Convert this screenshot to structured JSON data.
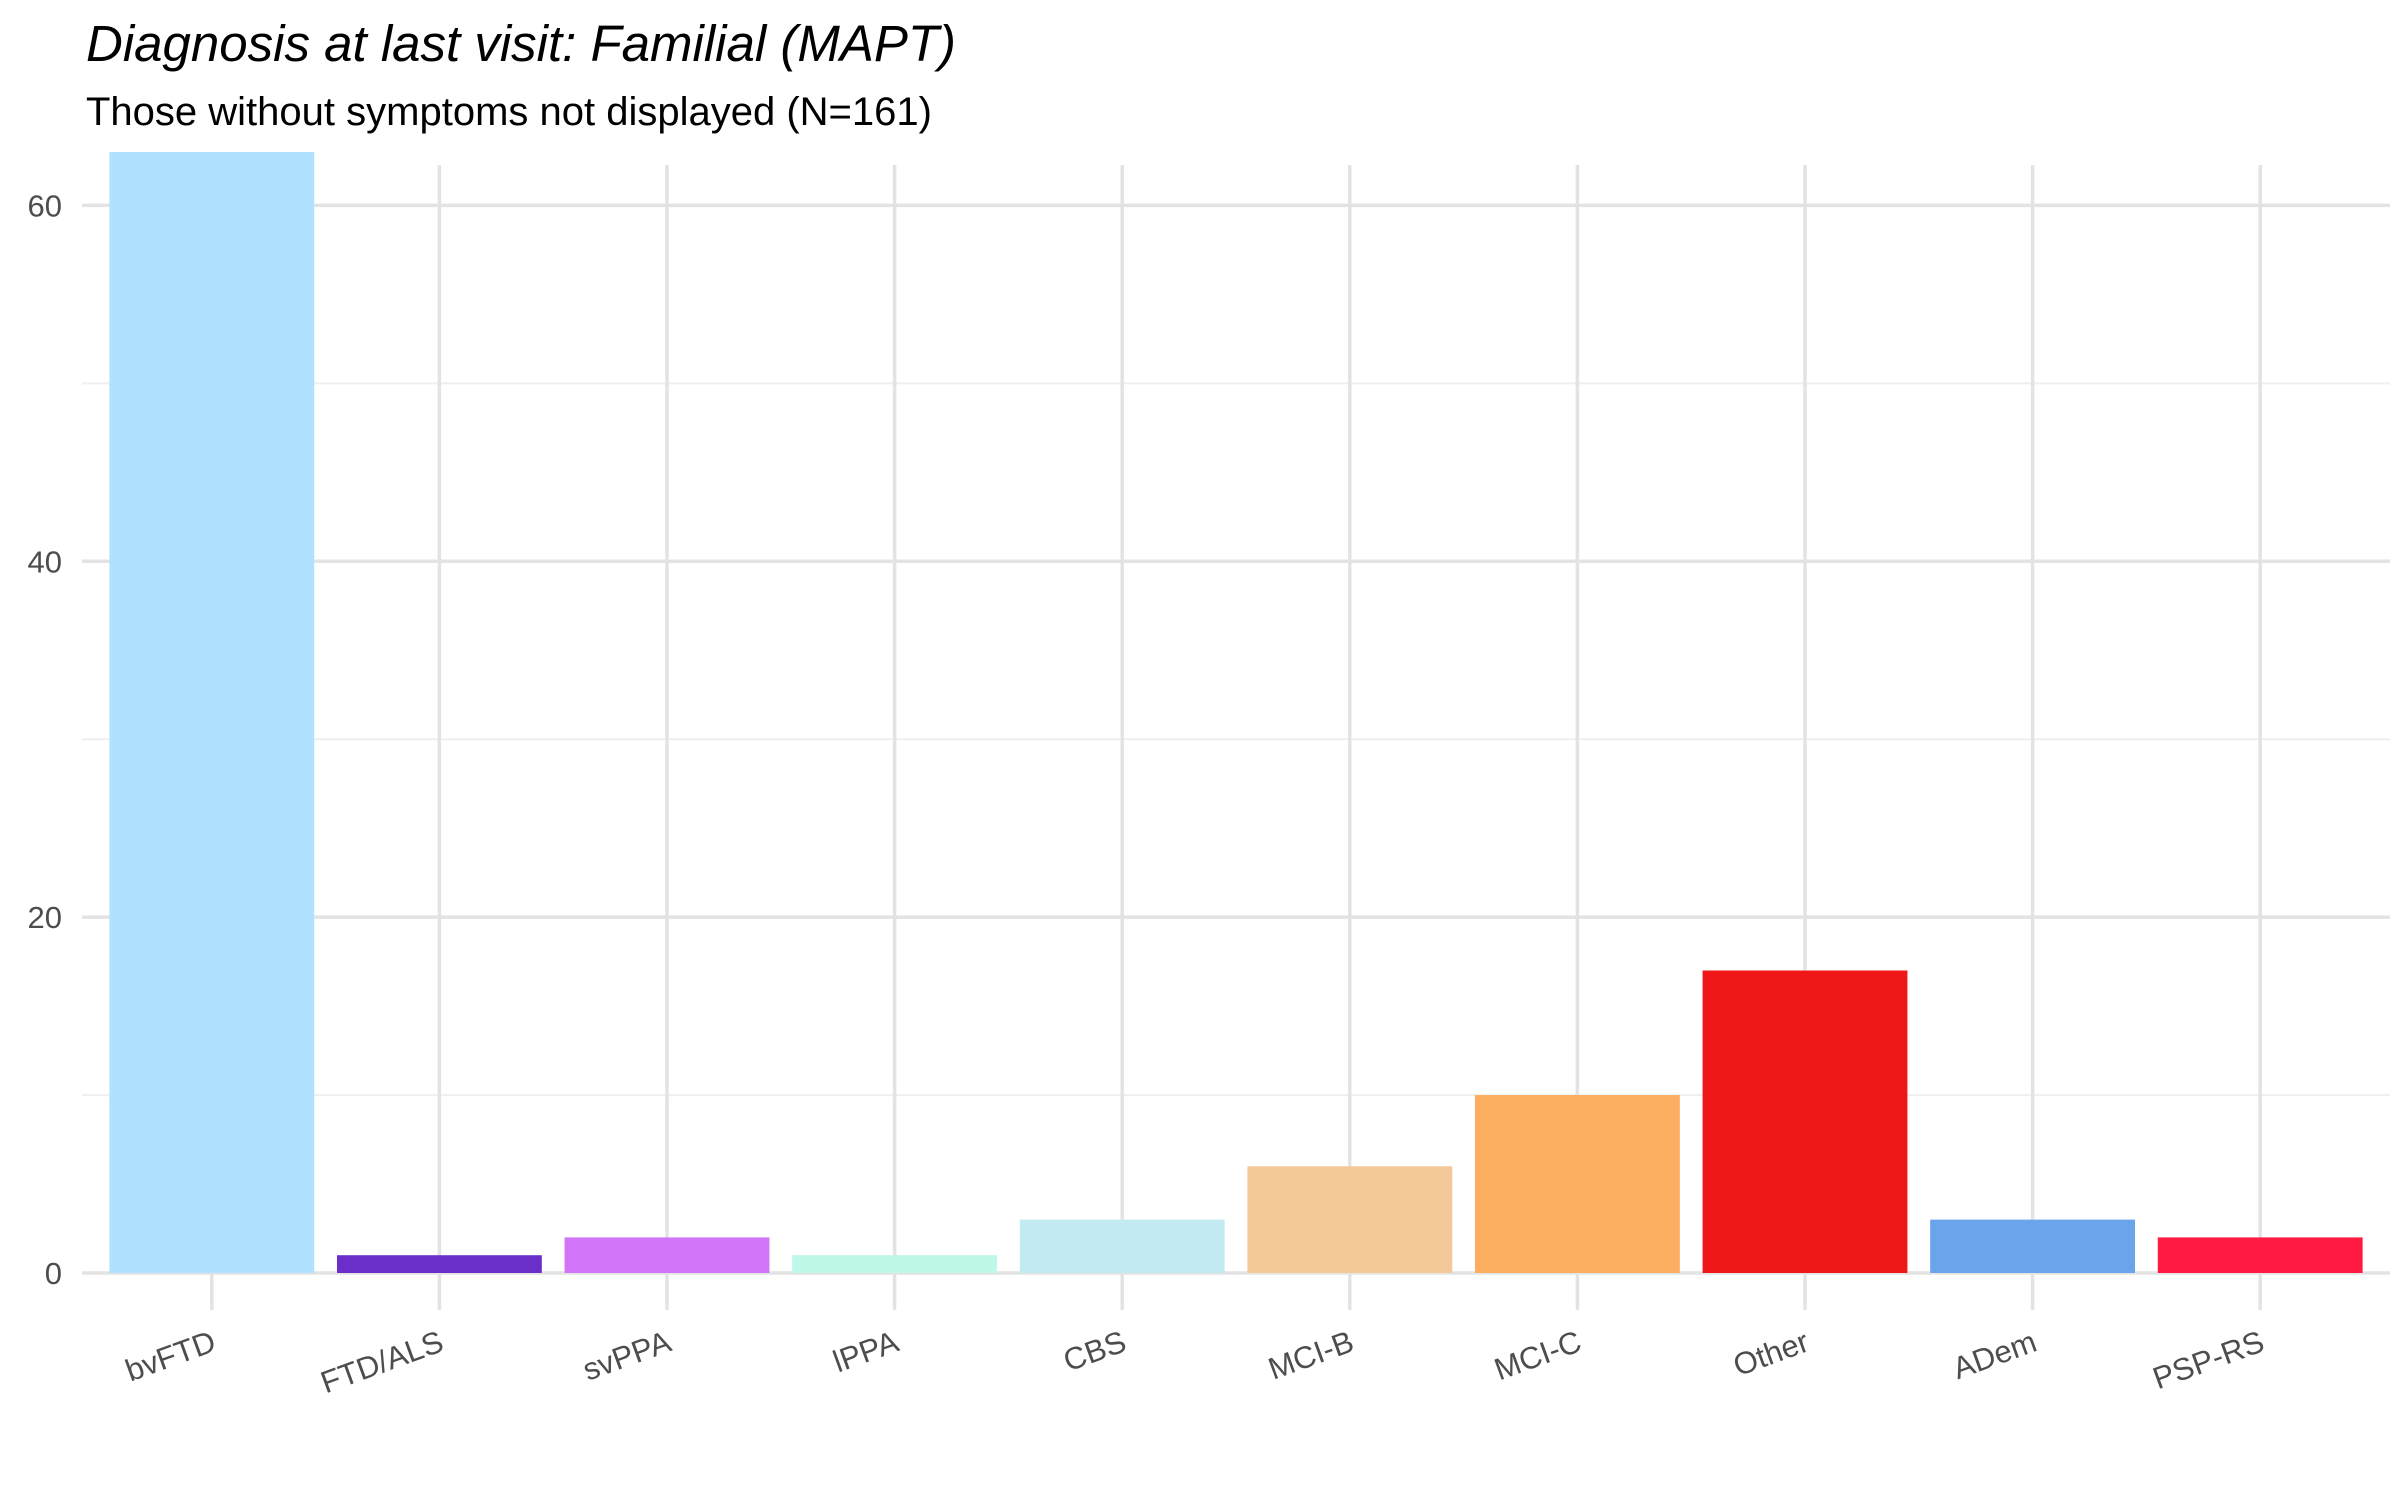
{
  "chart_data": {
    "type": "bar",
    "title": "Diagnosis at last visit: Familial (MAPT)",
    "subtitle": "Those without symptoms not displayed (N=161)",
    "xlabel": "",
    "ylabel": "",
    "categories": [
      "bvFTD",
      "FTD/ALS",
      "svPPA",
      "lPPA",
      "CBS",
      "MCI-B",
      "MCI-C",
      "Other",
      "ADem",
      "PSP-RS"
    ],
    "values": [
      63,
      1,
      2,
      1,
      3,
      6,
      10,
      17,
      3,
      2
    ],
    "colors": [
      "#B0E2FF",
      "#6A2FC9",
      "#D174F7",
      "#BFF7E8",
      "#C2EAF2",
      "#F3C99A",
      "#FCAD5F",
      "#EF1717",
      "#6AA5EC",
      "#FF1A44"
    ],
    "ylim": [
      0,
      65
    ],
    "yticks": [
      0,
      20,
      40,
      60
    ],
    "yticks_minor": [
      10,
      30,
      50
    ],
    "grid": true,
    "legend": "none"
  }
}
